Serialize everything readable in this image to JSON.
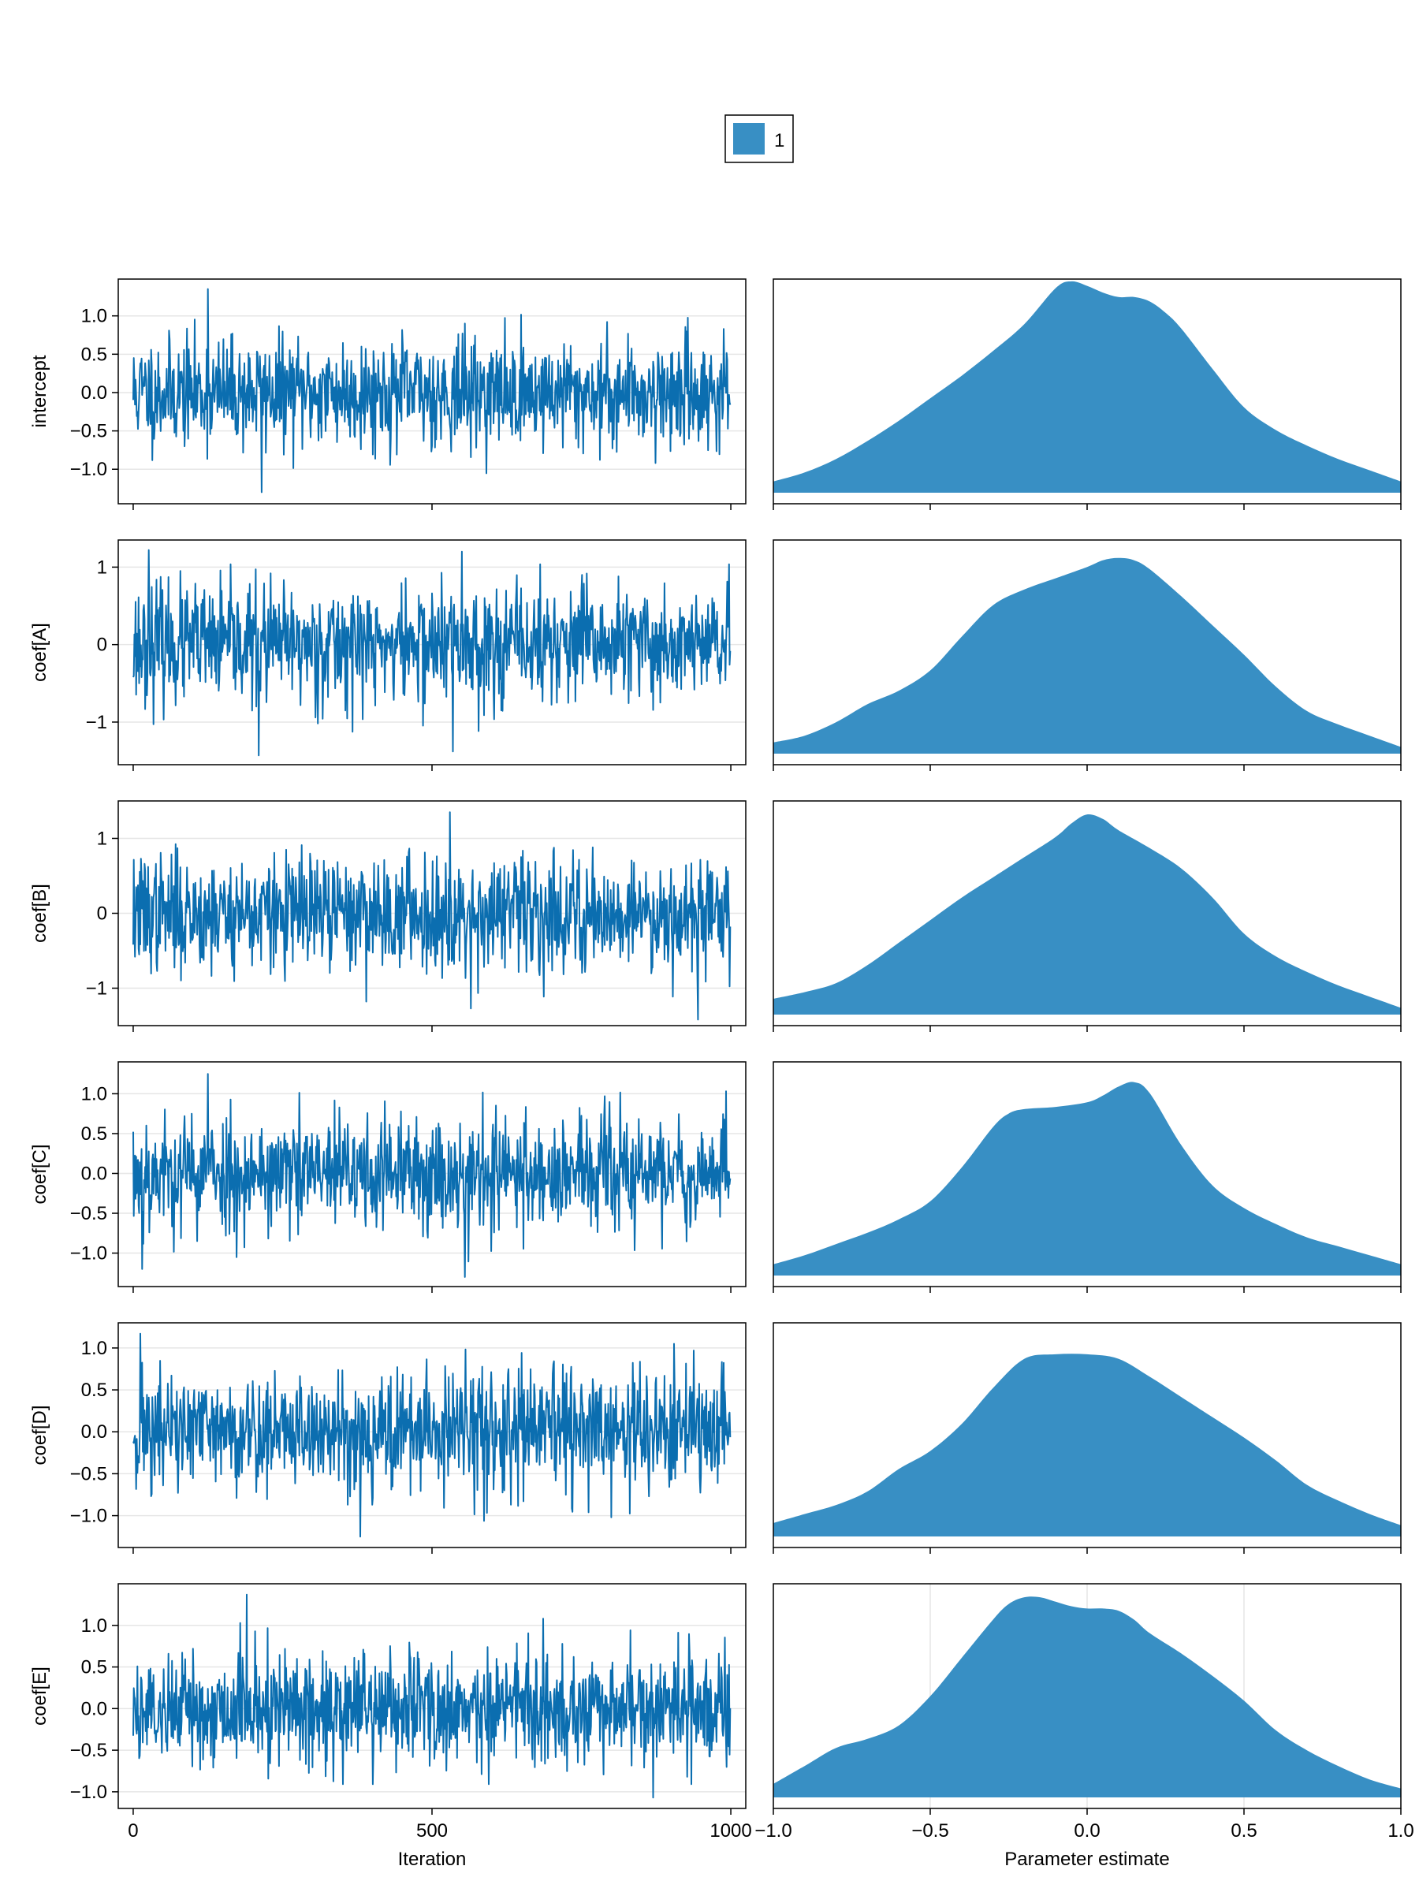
{
  "legend": {
    "items": [
      {
        "label": "1",
        "color": "#388fc4"
      }
    ]
  },
  "colors": {
    "trace": "#0b6eb0",
    "density": "#388fc4",
    "grid": "#e6e6e6",
    "frame": "#000000"
  },
  "chart_data": [
    {
      "type": "line",
      "panel": "trace",
      "ylabel": "intercept",
      "xlabel": "",
      "xlim": [
        -25,
        1025
      ],
      "ylim": [
        -1.45,
        1.48
      ],
      "xticks": [
        0,
        500,
        1000
      ],
      "xtick_labels": [],
      "yticks": [
        1.0,
        0.5,
        0.0,
        -0.5,
        -1.0
      ],
      "ytick_labels": [
        "1.0",
        "0.5",
        "0.0",
        "−0.5",
        "−1.0"
      ],
      "series": [
        {
          "n": 1000,
          "sd": 0.35,
          "min": -1.3,
          "max": 1.35,
          "seed": 11,
          "spikes": [
            [
              125,
              1.35
            ],
            [
              215,
              -1.3
            ]
          ]
        }
      ]
    },
    {
      "type": "area",
      "panel": "density",
      "xlabel": "",
      "xlim": [
        -1.0,
        1.0
      ],
      "xticks": [
        -1.0,
        -0.5,
        0.0,
        0.5,
        1.0
      ],
      "xtick_labels": [],
      "x": [
        -1.0,
        -0.9,
        -0.8,
        -0.7,
        -0.6,
        -0.5,
        -0.4,
        -0.3,
        -0.2,
        -0.1,
        -0.05,
        0.0,
        0.05,
        0.1,
        0.15,
        0.2,
        0.25,
        0.3,
        0.4,
        0.5,
        0.6,
        0.7,
        0.8,
        0.9,
        1.0
      ],
      "density": [
        0.05,
        0.09,
        0.15,
        0.23,
        0.32,
        0.42,
        0.52,
        0.63,
        0.75,
        0.91,
        0.94,
        0.92,
        0.89,
        0.87,
        0.87,
        0.85,
        0.8,
        0.73,
        0.55,
        0.38,
        0.28,
        0.21,
        0.15,
        0.1,
        0.05
      ]
    },
    {
      "type": "line",
      "panel": "trace",
      "ylabel": "coef[A]",
      "xlabel": "",
      "xlim": [
        -25,
        1025
      ],
      "ylim": [
        -1.55,
        1.35
      ],
      "xticks": [
        0,
        500,
        1000
      ],
      "xtick_labels": [],
      "yticks": [
        1,
        0,
        -1
      ],
      "ytick_labels": [
        "1",
        "0",
        "−1"
      ],
      "series": [
        {
          "n": 1000,
          "sd": 0.38,
          "min": -1.43,
          "max": 1.22,
          "seed": 23,
          "spikes": [
            [
              26,
              1.22
            ],
            [
              210,
              -1.43
            ],
            [
              550,
              1.2
            ],
            [
              535,
              -1.38
            ]
          ]
        }
      ]
    },
    {
      "type": "area",
      "panel": "density",
      "xlabel": "",
      "xlim": [
        -1.0,
        1.0
      ],
      "xticks": [
        -1.0,
        -0.5,
        0.0,
        0.5,
        1.0
      ],
      "xtick_labels": [],
      "x": [
        -1.0,
        -0.9,
        -0.8,
        -0.7,
        -0.6,
        -0.5,
        -0.4,
        -0.3,
        -0.2,
        -0.1,
        0.0,
        0.05,
        0.1,
        0.15,
        0.2,
        0.3,
        0.4,
        0.5,
        0.6,
        0.7,
        0.8,
        0.9,
        1.0
      ],
      "density": [
        0.05,
        0.08,
        0.14,
        0.22,
        0.28,
        0.37,
        0.52,
        0.66,
        0.73,
        0.78,
        0.83,
        0.86,
        0.87,
        0.86,
        0.82,
        0.7,
        0.57,
        0.44,
        0.3,
        0.19,
        0.13,
        0.08,
        0.03
      ]
    },
    {
      "type": "line",
      "panel": "trace",
      "ylabel": "coef[B]",
      "xlabel": "",
      "xlim": [
        -25,
        1025
      ],
      "ylim": [
        -1.5,
        1.5
      ],
      "xticks": [
        0,
        500,
        1000
      ],
      "xtick_labels": [],
      "yticks": [
        1,
        0,
        -1
      ],
      "ytick_labels": [
        "1",
        "0",
        "−1"
      ],
      "series": [
        {
          "n": 1000,
          "sd": 0.38,
          "min": -1.42,
          "max": 1.35,
          "seed": 37,
          "spikes": [
            [
              530,
              1.35
            ],
            [
              565,
              -1.27
            ],
            [
              945,
              -1.42
            ]
          ]
        }
      ]
    },
    {
      "type": "area",
      "panel": "density",
      "xlabel": "",
      "xlim": [
        -1.0,
        1.0
      ],
      "xticks": [
        -1.0,
        -0.5,
        0.0,
        0.5,
        1.0
      ],
      "xtick_labels": [],
      "x": [
        -1.0,
        -0.9,
        -0.8,
        -0.7,
        -0.6,
        -0.5,
        -0.4,
        -0.3,
        -0.2,
        -0.1,
        -0.05,
        0.0,
        0.05,
        0.1,
        0.2,
        0.3,
        0.4,
        0.5,
        0.6,
        0.7,
        0.8,
        0.9,
        1.0
      ],
      "density": [
        0.07,
        0.1,
        0.14,
        0.22,
        0.32,
        0.42,
        0.52,
        0.61,
        0.7,
        0.79,
        0.85,
        0.89,
        0.87,
        0.82,
        0.74,
        0.65,
        0.52,
        0.36,
        0.26,
        0.19,
        0.13,
        0.08,
        0.03
      ]
    },
    {
      "type": "line",
      "panel": "trace",
      "ylabel": "coef[C]",
      "xlabel": "",
      "xlim": [
        -25,
        1025
      ],
      "ylim": [
        -1.42,
        1.4
      ],
      "xticks": [
        0,
        500,
        1000
      ],
      "xtick_labels": [],
      "yticks": [
        1.0,
        0.5,
        0.0,
        -0.5,
        -1.0
      ],
      "ytick_labels": [
        "1.0",
        "0.5",
        "0.0",
        "−0.5",
        "−1.0"
      ],
      "series": [
        {
          "n": 1000,
          "sd": 0.37,
          "min": -1.3,
          "max": 1.25,
          "seed": 53,
          "spikes": [
            [
              125,
              1.25
            ],
            [
              555,
              -1.3
            ],
            [
              15,
              -1.2
            ]
          ]
        }
      ]
    },
    {
      "type": "area",
      "panel": "density",
      "xlabel": "",
      "xlim": [
        -1.0,
        1.0
      ],
      "xticks": [
        -1.0,
        -0.5,
        0.0,
        0.5,
        1.0
      ],
      "xtick_labels": [],
      "x": [
        -1.0,
        -0.9,
        -0.8,
        -0.7,
        -0.6,
        -0.5,
        -0.4,
        -0.3,
        -0.25,
        -0.2,
        -0.1,
        0.0,
        0.05,
        0.1,
        0.15,
        0.2,
        0.3,
        0.4,
        0.5,
        0.6,
        0.7,
        0.8,
        0.9,
        1.0
      ],
      "density": [
        0.05,
        0.09,
        0.14,
        0.19,
        0.25,
        0.33,
        0.48,
        0.66,
        0.72,
        0.74,
        0.75,
        0.77,
        0.8,
        0.84,
        0.86,
        0.81,
        0.58,
        0.4,
        0.3,
        0.23,
        0.17,
        0.13,
        0.09,
        0.05
      ]
    },
    {
      "type": "line",
      "panel": "trace",
      "ylabel": "coef[D]",
      "xlabel": "",
      "xlim": [
        -25,
        1025
      ],
      "ylim": [
        -1.38,
        1.3
      ],
      "xticks": [
        0,
        500,
        1000
      ],
      "xtick_labels": [],
      "yticks": [
        1.0,
        0.5,
        0.0,
        -0.5,
        -1.0
      ],
      "ytick_labels": [
        "1.0",
        "0.5",
        "0.0",
        "−0.5",
        "−1.0"
      ],
      "series": [
        {
          "n": 1000,
          "sd": 0.36,
          "min": -1.25,
          "max": 1.17,
          "seed": 71,
          "spikes": [
            [
              12,
              1.17
            ],
            [
              380,
              -1.25
            ],
            [
              905,
              1.05
            ]
          ]
        }
      ]
    },
    {
      "type": "area",
      "panel": "density",
      "xlabel": "",
      "xlim": [
        -1.0,
        1.0
      ],
      "xticks": [
        -1.0,
        -0.5,
        0.0,
        0.5,
        1.0
      ],
      "xtick_labels": [],
      "x": [
        -1.0,
        -0.9,
        -0.8,
        -0.7,
        -0.6,
        -0.5,
        -0.4,
        -0.3,
        -0.2,
        -0.1,
        0.0,
        0.1,
        0.2,
        0.3,
        0.4,
        0.5,
        0.6,
        0.7,
        0.8,
        0.9,
        1.0
      ],
      "density": [
        0.06,
        0.1,
        0.14,
        0.2,
        0.3,
        0.38,
        0.5,
        0.66,
        0.79,
        0.81,
        0.81,
        0.79,
        0.71,
        0.62,
        0.53,
        0.44,
        0.34,
        0.23,
        0.16,
        0.1,
        0.05
      ]
    },
    {
      "type": "line",
      "panel": "trace",
      "ylabel": "coef[E]",
      "xlabel": "Iteration",
      "xlim": [
        -25,
        1025
      ],
      "ylim": [
        -1.2,
        1.5
      ],
      "xticks": [
        0,
        500,
        1000
      ],
      "xtick_labels": [
        "0",
        "500",
        "1000"
      ],
      "yticks": [
        1.0,
        0.5,
        0.0,
        -0.5,
        -1.0
      ],
      "ytick_labels": [
        "1.0",
        "0.5",
        "0.0",
        "−0.5",
        "−1.0"
      ],
      "series": [
        {
          "n": 1000,
          "sd": 0.34,
          "min": -1.07,
          "max": 1.37,
          "seed": 89,
          "spikes": [
            [
              190,
              1.37
            ],
            [
              870,
              -1.07
            ]
          ]
        }
      ]
    },
    {
      "type": "area",
      "panel": "density",
      "xlabel": "Parameter estimate",
      "xlim": [
        -1.0,
        1.0
      ],
      "xticks": [
        -1.0,
        -0.5,
        0.0,
        0.5,
        1.0
      ],
      "xtick_labels": [
        "−1.0",
        "−0.5",
        "0.0",
        "0.5",
        "1.0"
      ],
      "grid": true,
      "x": [
        -1.0,
        -0.9,
        -0.8,
        -0.7,
        -0.6,
        -0.5,
        -0.4,
        -0.3,
        -0.25,
        -0.2,
        -0.15,
        -0.1,
        -0.05,
        0.0,
        0.05,
        0.1,
        0.15,
        0.2,
        0.3,
        0.4,
        0.5,
        0.6,
        0.7,
        0.8,
        0.9,
        1.0
      ],
      "density": [
        0.06,
        0.14,
        0.22,
        0.26,
        0.32,
        0.45,
        0.62,
        0.79,
        0.86,
        0.89,
        0.89,
        0.87,
        0.85,
        0.84,
        0.84,
        0.83,
        0.79,
        0.73,
        0.64,
        0.54,
        0.43,
        0.3,
        0.21,
        0.14,
        0.08,
        0.04
      ]
    }
  ]
}
